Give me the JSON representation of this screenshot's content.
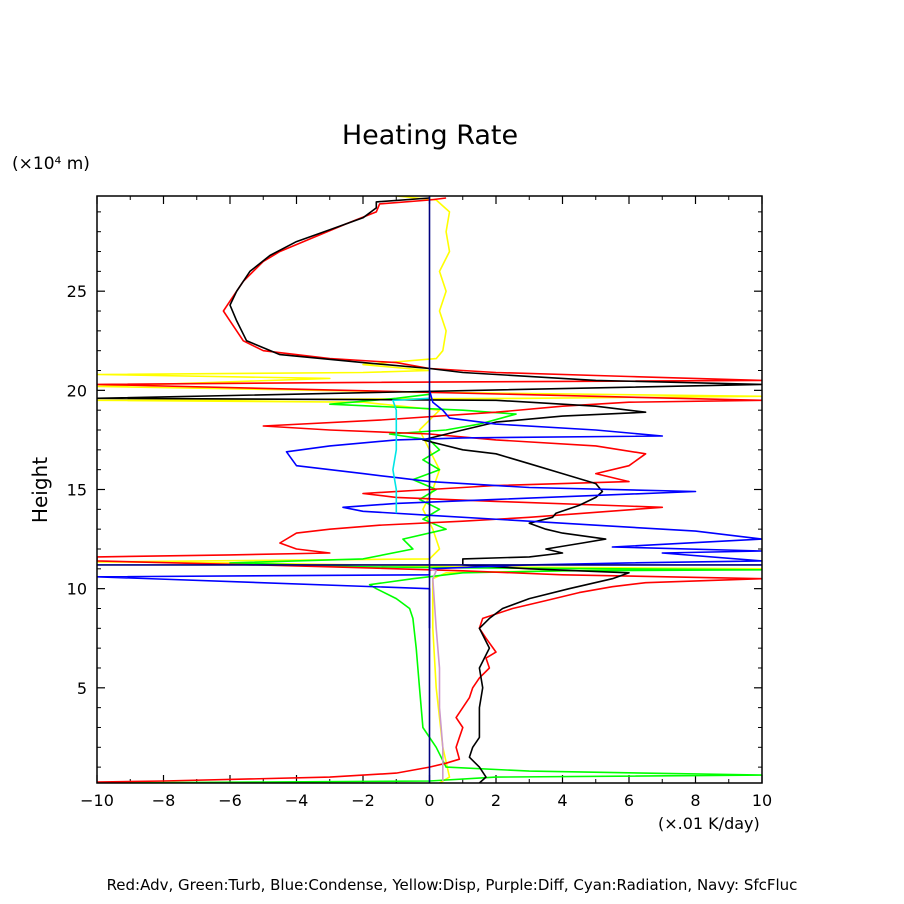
{
  "chart_data": {
    "type": "line",
    "title": "Heating Rate",
    "ylabel": "Height",
    "yunit": "(×10⁴ m)",
    "xunit": "(×.01 K/day)",
    "xlim": [
      -10,
      10
    ],
    "ylim": [
      0.2,
      29.8
    ],
    "xticks": [
      "−10",
      "−8",
      "−6",
      "−4",
      "−2",
      "0",
      "2",
      "4",
      "6",
      "8",
      "10"
    ],
    "xtick_values": [
      -10,
      -8,
      -6,
      -4,
      -2,
      0,
      2,
      4,
      6,
      8,
      10
    ],
    "yticks": [
      "5",
      "10",
      "15",
      "20",
      "25"
    ],
    "ytick_values": [
      5,
      10,
      15,
      20,
      25
    ],
    "legend_text": "Red:Adv, Green:Turb, Blue:Condense, Yellow:Disp, Purple:Diff, Cyan:Radiation, Navy: SfcFluc",
    "series": [
      {
        "color": "#ffff00",
        "points": [
          [
            0.3,
            0.2
          ],
          [
            0.6,
            0.5
          ],
          [
            0.4,
            2
          ],
          [
            0.2,
            5
          ],
          [
            0.1,
            8
          ],
          [
            0.1,
            10.5
          ],
          [
            0.5,
            10.8
          ],
          [
            4,
            10.9
          ],
          [
            10,
            11.0
          ],
          [
            1,
            11.1
          ],
          [
            -2,
            11.2
          ],
          [
            -6,
            11.3
          ],
          [
            -10,
            11.35
          ],
          [
            0,
            11.5
          ],
          [
            0.3,
            12
          ],
          [
            0.1,
            13
          ],
          [
            -0.2,
            14
          ],
          [
            0.1,
            15
          ],
          [
            0.3,
            16
          ],
          [
            0,
            17
          ],
          [
            -0.3,
            18
          ],
          [
            0.3,
            19
          ],
          [
            -2,
            19.4
          ],
          [
            -10,
            19.5
          ],
          [
            3,
            19.6
          ],
          [
            10,
            19.7
          ],
          [
            0,
            19.9
          ],
          [
            -10,
            20.2
          ],
          [
            -3,
            20.6
          ],
          [
            -10,
            20.8
          ],
          [
            -2,
            20.9
          ],
          [
            0,
            21
          ],
          [
            -2,
            21.3
          ],
          [
            0.2,
            21.6
          ],
          [
            0.4,
            22
          ],
          [
            0.5,
            23
          ],
          [
            0.3,
            24
          ],
          [
            0.5,
            25
          ],
          [
            0.3,
            26
          ],
          [
            0.6,
            27
          ],
          [
            0.5,
            28
          ],
          [
            0.6,
            29
          ],
          [
            0.2,
            29.6
          ],
          [
            -1,
            29.8
          ]
        ]
      },
      {
        "color": "#00ff00",
        "points": [
          [
            -10,
            0.2
          ],
          [
            -5,
            0.25
          ],
          [
            0,
            0.3
          ],
          [
            2,
            0.5
          ],
          [
            10,
            0.6
          ],
          [
            3,
            0.8
          ],
          [
            0.5,
            1
          ],
          [
            0.2,
            2
          ],
          [
            -0.2,
            3
          ],
          [
            -0.3,
            5
          ],
          [
            -0.4,
            7
          ],
          [
            -0.5,
            8.5
          ],
          [
            -0.6,
            9
          ],
          [
            -1,
            9.5
          ],
          [
            -1.6,
            10
          ],
          [
            -1.8,
            10.2
          ],
          [
            -0.5,
            10.5
          ],
          [
            1,
            10.8
          ],
          [
            4,
            10.9
          ],
          [
            10,
            10.95
          ],
          [
            1,
            11.05
          ],
          [
            -2,
            11.1
          ],
          [
            -6,
            11.3
          ],
          [
            -2,
            11.5
          ],
          [
            -0.5,
            12
          ],
          [
            -0.8,
            12.5
          ],
          [
            0.5,
            13
          ],
          [
            -0.2,
            13.5
          ],
          [
            0.3,
            14
          ],
          [
            -0.3,
            14.5
          ],
          [
            0.2,
            15
          ],
          [
            -0.5,
            15.5
          ],
          [
            0.3,
            16
          ],
          [
            -0.2,
            16.5
          ],
          [
            0.3,
            17
          ],
          [
            0,
            17.5
          ],
          [
            -1.2,
            17.8
          ],
          [
            0.5,
            18
          ],
          [
            1.5,
            18.3
          ],
          [
            2.6,
            18.8
          ],
          [
            1,
            19
          ],
          [
            -3,
            19.3
          ],
          [
            -1,
            19.6
          ],
          [
            0,
            19.8
          ]
        ]
      },
      {
        "color": "#ff0000",
        "points": [
          [
            -10,
            0.25
          ],
          [
            -8,
            0.3
          ],
          [
            -3,
            0.5
          ],
          [
            -1,
            0.7
          ],
          [
            0,
            1
          ],
          [
            0.5,
            1.2
          ],
          [
            0.9,
            1.4
          ],
          [
            0.8,
            2
          ],
          [
            0.9,
            2.5
          ],
          [
            1,
            3
          ],
          [
            0.8,
            3.5
          ],
          [
            1.2,
            4.5
          ],
          [
            1.3,
            5
          ],
          [
            1.5,
            5.5
          ],
          [
            1.8,
            6
          ],
          [
            1.7,
            6.5
          ],
          [
            2,
            6.8
          ],
          [
            1.7,
            7.5
          ],
          [
            1.5,
            8
          ],
          [
            1.6,
            8.5
          ],
          [
            2.5,
            9
          ],
          [
            3.5,
            9.4
          ],
          [
            4.5,
            9.8
          ],
          [
            5.5,
            10.1
          ],
          [
            6.5,
            10.3
          ],
          [
            10,
            10.5
          ],
          [
            4,
            10.7
          ],
          [
            1,
            10.9
          ],
          [
            -3,
            11.1
          ],
          [
            -10,
            11.4
          ],
          [
            -10,
            11.6
          ],
          [
            -6,
            11.7
          ],
          [
            -3,
            11.8
          ],
          [
            -4,
            12
          ],
          [
            -4.5,
            12.3
          ],
          [
            -4,
            12.8
          ],
          [
            -3,
            13
          ],
          [
            -1.5,
            13.2
          ],
          [
            1,
            13.4
          ],
          [
            3,
            13.6
          ],
          [
            7,
            14.1
          ],
          [
            2,
            14.4
          ],
          [
            -1,
            14.6
          ],
          [
            -2,
            14.8
          ],
          [
            0,
            15
          ],
          [
            2,
            15.2
          ],
          [
            6,
            15.4
          ],
          [
            5,
            15.8
          ],
          [
            6,
            16.2
          ],
          [
            6.5,
            16.8
          ],
          [
            5,
            17.2
          ],
          [
            2,
            17.5
          ],
          [
            0,
            17.8
          ],
          [
            -3,
            18
          ],
          [
            -5,
            18.2
          ],
          [
            -1.5,
            18.5
          ],
          [
            2,
            18.9
          ],
          [
            4,
            19.2
          ],
          [
            6,
            19.4
          ],
          [
            10,
            19.5
          ],
          [
            -10,
            20.3
          ],
          [
            -2,
            20.4
          ],
          [
            10,
            20.5
          ],
          [
            6,
            20.7
          ],
          [
            2,
            20.9
          ],
          [
            0,
            21.1
          ],
          [
            -1,
            21.4
          ],
          [
            -3,
            21.6
          ],
          [
            -5,
            22
          ],
          [
            -5.6,
            22.5
          ],
          [
            -5.8,
            23
          ],
          [
            -6,
            23.5
          ],
          [
            -6.2,
            24
          ],
          [
            -6,
            24.5
          ],
          [
            -5.6,
            25.5
          ],
          [
            -5,
            26.5
          ],
          [
            -4.5,
            27
          ],
          [
            -3.5,
            27.7
          ],
          [
            -2.5,
            28.4
          ],
          [
            -1.6,
            29
          ],
          [
            -1.5,
            29.4
          ],
          [
            0,
            29.6
          ],
          [
            0.5,
            29.7
          ]
        ]
      },
      {
        "color": "#000000",
        "points": [
          [
            1.5,
            0.2
          ],
          [
            1.7,
            0.5
          ],
          [
            1.5,
            1
          ],
          [
            1.2,
            1.5
          ],
          [
            1.3,
            2
          ],
          [
            1.5,
            2.5
          ],
          [
            1.5,
            4
          ],
          [
            1.6,
            5
          ],
          [
            1.5,
            6
          ],
          [
            1.8,
            7
          ],
          [
            1.5,
            8
          ],
          [
            1.8,
            8.5
          ],
          [
            2.2,
            9
          ],
          [
            3,
            9.5
          ],
          [
            4.2,
            10
          ],
          [
            5.5,
            10.5
          ],
          [
            6,
            10.8
          ],
          [
            3,
            11
          ],
          [
            1,
            11.2
          ],
          [
            1,
            11.5
          ],
          [
            3,
            11.6
          ],
          [
            4,
            11.8
          ],
          [
            3.5,
            12
          ],
          [
            4.6,
            12.3
          ],
          [
            5.3,
            12.5
          ],
          [
            4,
            12.8
          ],
          [
            3.5,
            13
          ],
          [
            3,
            13.3
          ],
          [
            3.7,
            13.6
          ],
          [
            3.8,
            13.8
          ],
          [
            4.5,
            14.2
          ],
          [
            5,
            14.6
          ],
          [
            5.2,
            14.9
          ],
          [
            5,
            15.3
          ],
          [
            4,
            15.8
          ],
          [
            3,
            16.3
          ],
          [
            2,
            16.8
          ],
          [
            1,
            17
          ],
          [
            -0.2,
            17.5
          ],
          [
            1,
            18
          ],
          [
            2,
            18.4
          ],
          [
            4,
            18.7
          ],
          [
            6.5,
            18.9
          ],
          [
            5,
            19.2
          ],
          [
            3,
            19.4
          ],
          [
            2,
            19.5
          ],
          [
            -10,
            19.6
          ],
          [
            10,
            20.3
          ],
          [
            5,
            20.5
          ],
          [
            1,
            20.9
          ],
          [
            0,
            21.1
          ],
          [
            -2,
            21.4
          ],
          [
            -4.5,
            21.8
          ],
          [
            -5.5,
            22.5
          ],
          [
            -5.8,
            23.5
          ],
          [
            -6,
            24.3
          ],
          [
            -5.8,
            25
          ],
          [
            -5.4,
            26
          ],
          [
            -4.8,
            26.8
          ],
          [
            -4,
            27.5
          ],
          [
            -3,
            28.1
          ],
          [
            -2,
            28.7
          ],
          [
            -1.6,
            29.2
          ],
          [
            -1.6,
            29.5
          ],
          [
            0,
            29.7
          ]
        ]
      },
      {
        "color": "#0000ff",
        "points": [
          [
            0,
            8
          ],
          [
            0,
            10
          ],
          [
            -10,
            10.6
          ],
          [
            0,
            10.7
          ],
          [
            0,
            11
          ],
          [
            3,
            11.2
          ],
          [
            6,
            11.3
          ],
          [
            10,
            11.4
          ],
          [
            7,
            11.8
          ],
          [
            10,
            11.9
          ],
          [
            5.5,
            12.1
          ],
          [
            10,
            12.5
          ],
          [
            8,
            12.9
          ],
          [
            5,
            13.2
          ],
          [
            3,
            13.4
          ],
          [
            0,
            13.7
          ],
          [
            -2,
            13.9
          ],
          [
            -2.6,
            14.1
          ],
          [
            -1,
            14.3
          ],
          [
            2,
            14.5
          ],
          [
            8,
            14.9
          ],
          [
            3,
            15.1
          ],
          [
            0,
            15.4
          ],
          [
            -1,
            15.6
          ],
          [
            -2,
            15.8
          ],
          [
            -4,
            16.2
          ],
          [
            -4.3,
            16.9
          ],
          [
            -3,
            17.2
          ],
          [
            -1,
            17.5
          ],
          [
            1,
            17.6
          ],
          [
            7,
            17.7
          ],
          [
            5,
            18
          ],
          [
            2,
            18.3
          ],
          [
            0.6,
            18.6
          ],
          [
            0.4,
            19
          ],
          [
            0.1,
            19.4
          ],
          [
            0,
            20
          ]
        ]
      },
      {
        "color": "#00e5e5",
        "points": [
          [
            -1,
            13.8
          ],
          [
            -1,
            15
          ],
          [
            -1.1,
            16
          ],
          [
            -1,
            17
          ],
          [
            -1,
            18
          ],
          [
            -1,
            19
          ],
          [
            -1.1,
            19.5
          ],
          [
            0,
            19.6
          ]
        ]
      },
      {
        "color": "#cc99cc",
        "points": [
          [
            0.4,
            0.3
          ],
          [
            0.4,
            2
          ],
          [
            0.3,
            4
          ],
          [
            0.3,
            6
          ],
          [
            0.2,
            8
          ],
          [
            0.1,
            10.5
          ],
          [
            0.2,
            10.9
          ],
          [
            0,
            11
          ]
        ]
      },
      {
        "color": "#000080",
        "points": [
          [
            0,
            0.2
          ],
          [
            0,
            29.8
          ]
        ]
      },
      {
        "color": "#000080",
        "points": [
          [
            -10,
            11.2
          ],
          [
            10,
            11.2
          ]
        ]
      }
    ]
  }
}
